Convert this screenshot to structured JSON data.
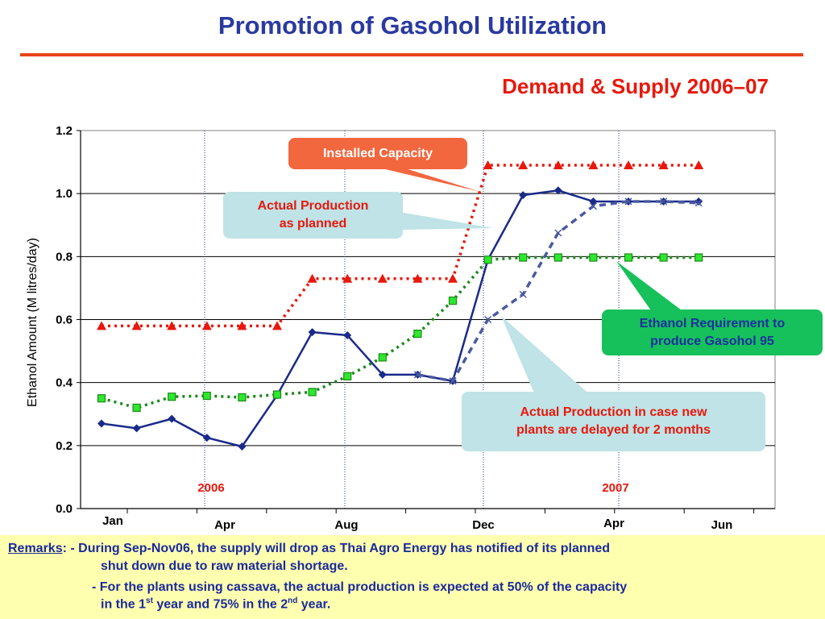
{
  "slide": {
    "title": "Promotion of Gasohol Utilization",
    "subtitle": "Demand & Supply 2006–07"
  },
  "chart_data": {
    "type": "line",
    "ylabel": "Ethanol Amount (M litres/day)",
    "ylim": [
      0,
      1.2
    ],
    "yticks": [
      "0.0",
      "0.2",
      "0.4",
      "0.6",
      "0.8",
      "1.0",
      "1.2"
    ],
    "x_tick_labels": [
      "Jan",
      "Apr",
      "Aug",
      "Dec",
      "Apr",
      "Jun"
    ],
    "year_labels": [
      "2006",
      "2007"
    ],
    "grid": "horizontal",
    "series": [
      {
        "color": "#e8180c",
        "marker": "triangle",
        "style": "dotted",
        "values": [
          0.58,
          0.58,
          0.58,
          0.58,
          0.58,
          0.58,
          0.73,
          0.73,
          0.73,
          0.73,
          0.73,
          1.09,
          1.09,
          1.09,
          1.09,
          1.09,
          1.09,
          1.09
        ]
      },
      {
        "color": "#1a2a8a",
        "marker": "diamond",
        "style": "solid",
        "values": [
          0.27,
          0.255,
          0.285,
          0.225,
          0.197,
          0.36,
          0.56,
          0.55,
          0.425,
          0.425,
          0.405,
          0.79,
          0.995,
          1.01,
          0.975,
          0.975,
          0.975,
          0.975
        ]
      },
      {
        "color": "#1a8a1a",
        "marker": "square",
        "marker_fill": "#2ee82e",
        "style": "dotted",
        "values": [
          0.35,
          0.32,
          0.355,
          0.358,
          0.353,
          0.362,
          0.37,
          0.42,
          0.48,
          0.555,
          0.66,
          0.79,
          0.797,
          0.797,
          0.797,
          0.797,
          0.797,
          0.797
        ]
      },
      {
        "color": "#4a5aa0",
        "marker": "x",
        "style": "dashed",
        "values": [
          null,
          null,
          null,
          null,
          null,
          null,
          null,
          null,
          null,
          0.425,
          0.405,
          0.6,
          0.68,
          0.875,
          0.96,
          0.975,
          0.975,
          0.97
        ]
      }
    ]
  },
  "callouts": {
    "installed": "Installed Capacity",
    "planned": [
      "Actual Production",
      "as planned"
    ],
    "requirement": [
      "Ethanol Requirement to",
      "produce Gasohol 95"
    ],
    "delayed": [
      "Actual Production in case new",
      "plants are delayed for 2 months"
    ]
  },
  "colors": {
    "title": "#2a3aa0",
    "accent_red": "#e8180c",
    "rule": "#e8431b",
    "remarks_bg": "#ffffb0"
  },
  "remarks": {
    "label": "Remarks",
    "line1": ": - During Sep-Nov06, the supply will drop as Thai Agro Energy has notified of its planned",
    "line1b": "shut down due to raw material shortage.",
    "line2a": "- For the plants using cassava, the actual production is expected at 50% of the capacity",
    "line2b_pre": "in the 1",
    "sup1": "st",
    "line2b_mid": " year and 75% in the 2",
    "sup2": "nd",
    "line2b_post": " year."
  }
}
